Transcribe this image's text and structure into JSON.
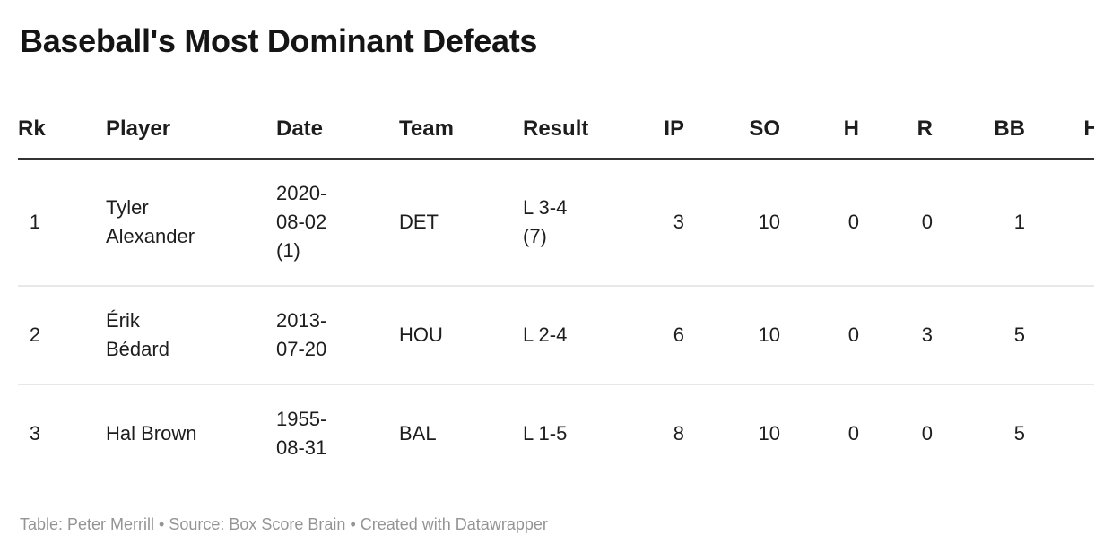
{
  "title": "Baseball's Most Dominant Defeats",
  "footer": "Table: Peter Merrill • Source: Box Score Brain • Created with Datawrapper",
  "colors": {
    "background": "#ffffff",
    "title_text": "#151515",
    "body_text": "#1d1d1d",
    "header_rule": "#333333",
    "row_divider": "#e8e8e8",
    "footer_text": "#949494"
  },
  "chart_data": {
    "type": "table",
    "title": "Baseball's Most Dominant Defeats",
    "columns": [
      "Rk",
      "Player",
      "Date",
      "Team",
      "Result",
      "IP",
      "SO",
      "H",
      "R",
      "BB",
      "HR"
    ],
    "rows": [
      [
        "1",
        "Tyler Alexander",
        "2020-08-02 (1)",
        "DET",
        "L 3-4 (7)",
        "3",
        "10",
        "0",
        "0",
        "1",
        ""
      ],
      [
        "2",
        "Érik Bédard",
        "2013-07-20",
        "HOU",
        "L 2-4",
        "6",
        "10",
        "0",
        "3",
        "5",
        ""
      ],
      [
        "3",
        "Hal Brown",
        "1955-08-31",
        "BAL",
        "L 1-5",
        "8",
        "10",
        "0",
        "0",
        "5",
        ""
      ]
    ],
    "layout_hints": {
      "numeric_columns_right_aligned": [
        "IP",
        "SO",
        "H",
        "R",
        "BB",
        "HR"
      ],
      "last_column_clipped": "HR column is cut off at the right edge; only the left part of the 'H' glyph is visible and its values are not shown",
      "grid": "dark rule under header, light gray dividers between rows, no outer border"
    }
  }
}
